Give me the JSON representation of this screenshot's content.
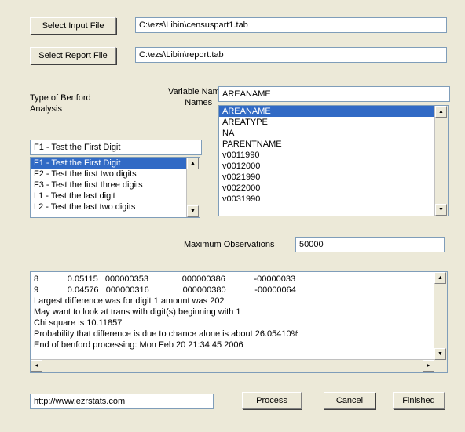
{
  "colors": {
    "background": "#ece9d8",
    "selection": "#316ac5",
    "border_input": "#7f9db9"
  },
  "buttons": {
    "select_input": "Select Input File",
    "select_report": "Select Report File",
    "process": "Process",
    "cancel": "Cancel",
    "finished": "Finished"
  },
  "labels": {
    "variable_names": "Variable Names",
    "analysis_type_l1": "Type of Benford",
    "analysis_type_l2": "Analysis",
    "max_obs": "Maximum Observations"
  },
  "fields": {
    "input_file": "C:\\ezs\\Libin\\censuspart1.tab",
    "report_file": "C:\\ezs\\Libin\\report.tab",
    "variable_selected": "AREANAME",
    "analysis_selected": "F1 - Test the First Digit",
    "max_obs": "50000",
    "url": "http://www.ezrstats.com"
  },
  "variable_list": {
    "selected_index": 0,
    "items": [
      "AREANAME",
      "AREATYPE",
      "NA",
      "PARENTNAME",
      "v0011990",
      "v0012000",
      "v0021990",
      "v0022000",
      "v0031990"
    ]
  },
  "analysis_list": {
    "selected_index": 0,
    "items": [
      "F1 - Test the First Digit",
      "F2 - Test the first two digits",
      "F3 - Test the first three digits",
      "L1 - Test the last digit",
      "L2 - Test the last two digits"
    ]
  },
  "output_lines": [
    "8            0.05115   000000353              000000386            -00000033",
    "9            0.04576   000000316              000000380            -00000064",
    "Largest difference was for digit 1 amount was 202",
    "May want to look at trans with digit(s) beginning with 1",
    "Chi square is 10.11857",
    "Probability that difference is due to chance alone is about 26.05410%",
    "End of benford processing: Mon Feb 20 21:34:45 2006"
  ]
}
